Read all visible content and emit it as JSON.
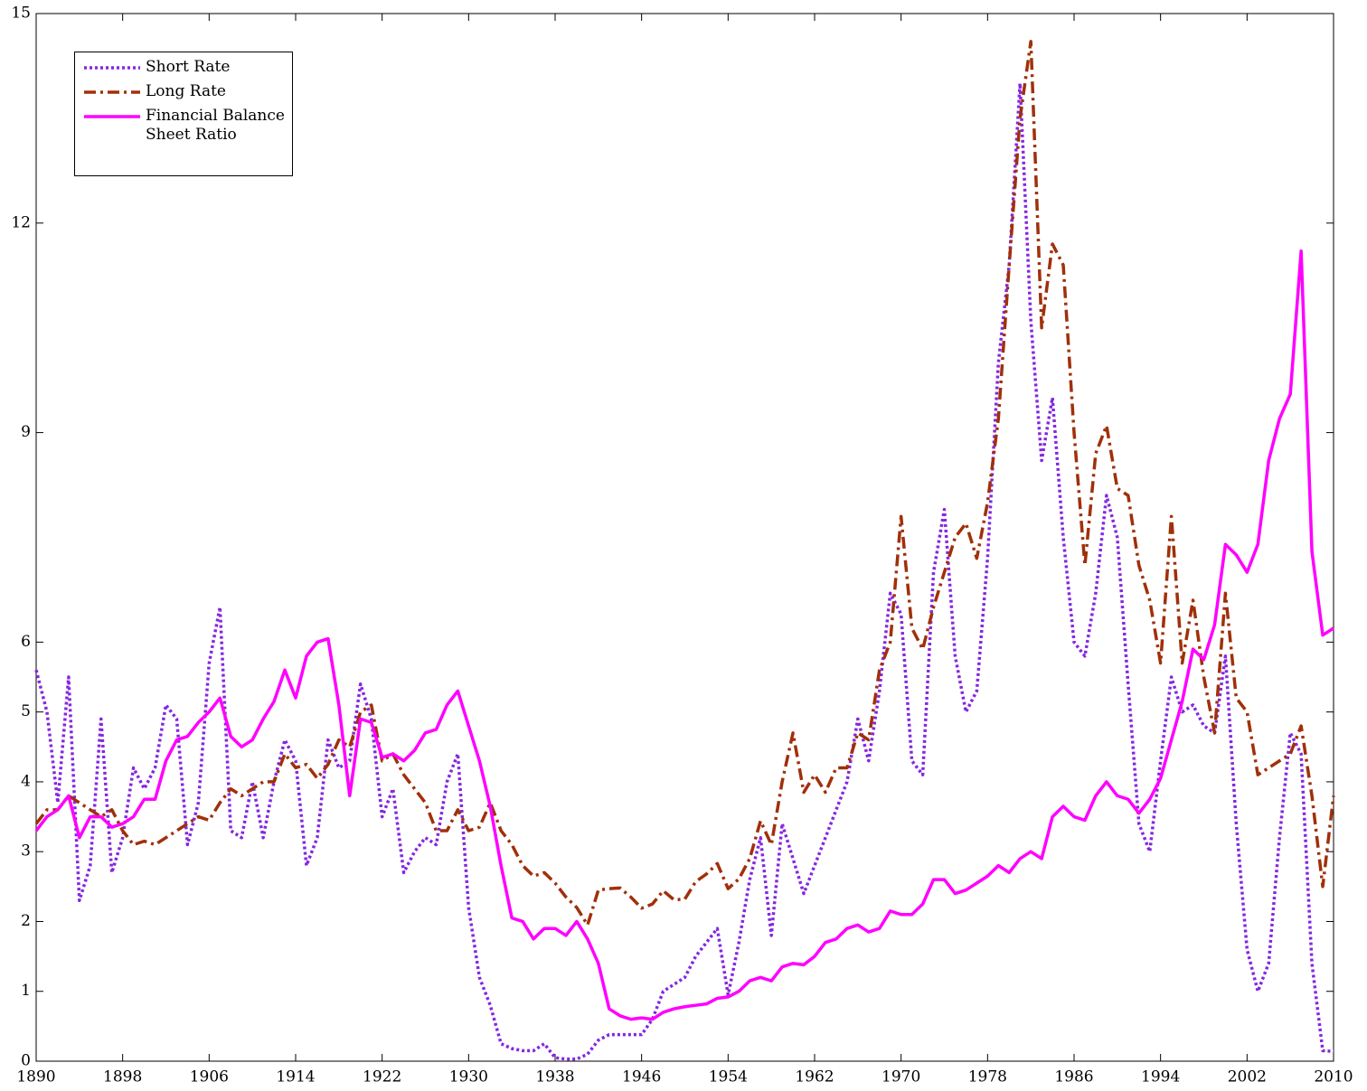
{
  "chart_data": {
    "type": "line",
    "x": [
      1890,
      1891,
      1892,
      1893,
      1894,
      1895,
      1896,
      1897,
      1898,
      1899,
      1900,
      1901,
      1902,
      1903,
      1904,
      1905,
      1906,
      1907,
      1908,
      1909,
      1910,
      1911,
      1912,
      1913,
      1914,
      1915,
      1916,
      1917,
      1918,
      1919,
      1920,
      1921,
      1922,
      1923,
      1924,
      1925,
      1926,
      1927,
      1928,
      1929,
      1930,
      1931,
      1932,
      1933,
      1934,
      1935,
      1936,
      1937,
      1938,
      1939,
      1940,
      1941,
      1942,
      1943,
      1944,
      1945,
      1946,
      1947,
      1948,
      1949,
      1950,
      1951,
      1952,
      1953,
      1954,
      1955,
      1956,
      1957,
      1958,
      1959,
      1960,
      1961,
      1962,
      1963,
      1964,
      1965,
      1966,
      1967,
      1968,
      1969,
      1970,
      1971,
      1972,
      1973,
      1974,
      1975,
      1976,
      1977,
      1978,
      1979,
      1980,
      1981,
      1982,
      1983,
      1984,
      1985,
      1986,
      1987,
      1988,
      1989,
      1990,
      1991,
      1992,
      1993,
      1994,
      1995,
      1996,
      1997,
      1998,
      1999,
      2000,
      2001,
      2002,
      2003,
      2004,
      2005,
      2006,
      2007,
      2008,
      2009,
      2010
    ],
    "xlim": [
      1890,
      2010
    ],
    "xticks": [
      1890,
      1898,
      1906,
      1914,
      1922,
      1930,
      1938,
      1946,
      1954,
      1962,
      1970,
      1978,
      1986,
      1994,
      2002,
      2010
    ],
    "ylim": [
      0,
      15
    ],
    "yticks": [
      0,
      1,
      2,
      3,
      4,
      5,
      6,
      9,
      12,
      15
    ],
    "grid": false,
    "legend": "upper left",
    "series": [
      {
        "name": "Short Rate",
        "color": "#8526e0",
        "linestyle": "dotted",
        "values": [
          5.6,
          5.0,
          3.7,
          5.5,
          2.3,
          2.8,
          4.9,
          2.7,
          3.2,
          4.2,
          3.9,
          4.2,
          5.1,
          4.9,
          3.1,
          3.7,
          5.7,
          6.5,
          3.3,
          3.2,
          4.0,
          3.2,
          4.0,
          4.6,
          4.3,
          2.8,
          3.2,
          4.6,
          4.2,
          4.3,
          5.4,
          4.9,
          3.5,
          3.9,
          2.7,
          3.0,
          3.2,
          3.1,
          4.0,
          4.4,
          2.2,
          1.2,
          0.8,
          0.25,
          0.18,
          0.15,
          0.15,
          0.25,
          0.05,
          0.03,
          0.03,
          0.1,
          0.3,
          0.38,
          0.38,
          0.38,
          0.38,
          0.6,
          1.0,
          1.1,
          1.2,
          1.5,
          1.7,
          1.9,
          0.95,
          1.7,
          2.6,
          3.2,
          1.8,
          3.4,
          2.9,
          2.4,
          2.8,
          3.2,
          3.6,
          4.0,
          4.9,
          4.3,
          5.3,
          6.7,
          6.4,
          4.3,
          4.1,
          7.0,
          7.9,
          5.8,
          5.0,
          5.3,
          7.2,
          10.0,
          11.4,
          14.0,
          10.6,
          8.6,
          9.5,
          7.5,
          6.0,
          5.8,
          6.7,
          8.1,
          7.5,
          5.4,
          3.4,
          3.0,
          4.3,
          5.5,
          5.0,
          5.1,
          4.8,
          4.7,
          5.8,
          3.4,
          1.6,
          1.0,
          1.4,
          3.2,
          4.7,
          4.4,
          1.4,
          0.15,
          0.14
        ]
      },
      {
        "name": "Long Rate",
        "color": "#a0300a",
        "linestyle": "dashdot",
        "values": [
          3.4,
          3.6,
          3.6,
          3.8,
          3.7,
          3.6,
          3.5,
          3.6,
          3.3,
          3.1,
          3.15,
          3.1,
          3.2,
          3.3,
          3.4,
          3.5,
          3.45,
          3.7,
          3.9,
          3.8,
          3.9,
          4.0,
          4.0,
          4.4,
          4.2,
          4.25,
          4.05,
          4.25,
          4.6,
          4.5,
          5.0,
          5.1,
          4.3,
          4.4,
          4.1,
          3.9,
          3.7,
          3.3,
          3.3,
          3.6,
          3.3,
          3.35,
          3.7,
          3.3,
          3.1,
          2.8,
          2.65,
          2.7,
          2.55,
          2.35,
          2.2,
          1.95,
          2.45,
          2.47,
          2.48,
          2.35,
          2.19,
          2.25,
          2.44,
          2.31,
          2.32,
          2.57,
          2.68,
          2.83,
          2.47,
          2.61,
          2.9,
          3.44,
          3.1,
          4.0,
          4.7,
          3.85,
          4.1,
          3.85,
          4.2,
          4.2,
          4.7,
          4.6,
          5.6,
          6.0,
          7.8,
          6.2,
          5.9,
          6.5,
          7.0,
          7.5,
          7.7,
          7.2,
          8.0,
          9.2,
          11.4,
          13.5,
          14.6,
          10.5,
          11.7,
          11.4,
          9.0,
          7.1,
          8.7,
          9.1,
          8.2,
          8.1,
          7.1,
          6.6,
          5.7,
          7.8,
          5.7,
          6.6,
          5.5,
          4.7,
          6.7,
          5.2,
          5.0,
          4.1,
          4.2,
          4.3,
          4.4,
          4.8,
          3.8,
          2.5,
          3.8
        ]
      },
      {
        "name": "Financial Balance Sheet Ratio",
        "color": "#ff00ff",
        "linestyle": "solid",
        "values": [
          3.3,
          3.5,
          3.6,
          3.8,
          3.2,
          3.5,
          3.5,
          3.35,
          3.4,
          3.5,
          3.75,
          3.75,
          4.3,
          4.6,
          4.65,
          4.85,
          5.0,
          5.2,
          4.65,
          4.5,
          4.6,
          4.9,
          5.15,
          5.6,
          5.2,
          5.8,
          6.0,
          6.05,
          5.1,
          3.8,
          4.9,
          4.85,
          4.35,
          4.4,
          4.3,
          4.45,
          4.7,
          4.75,
          5.1,
          5.3,
          4.8,
          4.3,
          3.65,
          2.8,
          2.05,
          2.0,
          1.75,
          1.9,
          1.9,
          1.8,
          2.0,
          1.75,
          1.4,
          0.75,
          0.65,
          0.6,
          0.62,
          0.6,
          0.7,
          0.75,
          0.78,
          0.8,
          0.82,
          0.9,
          0.92,
          1.0,
          1.15,
          1.2,
          1.15,
          1.35,
          1.4,
          1.38,
          1.5,
          1.7,
          1.75,
          1.9,
          1.95,
          1.85,
          1.9,
          2.15,
          2.1,
          2.1,
          2.25,
          2.6,
          2.6,
          2.4,
          2.45,
          2.55,
          2.65,
          2.8,
          2.7,
          2.9,
          3.0,
          2.9,
          3.5,
          3.65,
          3.5,
          3.45,
          3.8,
          4.0,
          3.8,
          3.75,
          3.55,
          3.75,
          4.05,
          4.6,
          5.15,
          5.9,
          5.75,
          6.25,
          7.4,
          7.25,
          7.0,
          7.4,
          8.6,
          9.2,
          9.55,
          11.6,
          7.3,
          6.1,
          6.2
        ]
      }
    ]
  }
}
